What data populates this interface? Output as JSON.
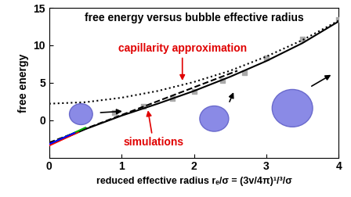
{
  "chart_data": {
    "type": "line",
    "title": "free energy versus bubble effective radius",
    "x_label": "reduced effective radius rₑ/σ = (3v/4π)¹/³/σ",
    "y_label": "free energy",
    "xlim": [
      0,
      4
    ],
    "xticks": [
      0,
      1,
      2,
      3,
      4
    ],
    "ylim": [
      -5,
      15
    ],
    "yticks": [
      0,
      5,
      10,
      15
    ],
    "grid": false,
    "annotations": [
      {
        "text": "capillarity approximation",
        "color": "#e00000"
      },
      {
        "text": "simulations",
        "color": "#e00000"
      }
    ],
    "series": [
      {
        "color": "#000000",
        "line_style": "dotted",
        "type": "line",
        "x": [
          0,
          0.5,
          1,
          1.5,
          2,
          2.5,
          3,
          3.5,
          4
        ],
        "values": [
          2.2,
          2.4,
          3.0,
          3.9,
          5.1,
          6.6,
          8.5,
          10.7,
          13.3
        ]
      },
      {
        "color": "#000000",
        "line_style": "solid",
        "type": "line",
        "x": [
          0,
          0.5,
          1,
          1.5,
          2,
          2.5,
          3,
          3.5,
          4
        ],
        "values": [
          -3.3,
          -1.2,
          0.6,
          2.2,
          3.9,
          5.8,
          7.9,
          10.3,
          13.2
        ]
      },
      {
        "color": "#000000",
        "line_style": "dashed",
        "type": "line",
        "x": [
          0,
          2.6
        ],
        "values": [
          -3.0,
          6.6
        ]
      },
      {
        "color": "#aaaaaa",
        "marker": "square",
        "type": "scatter",
        "x": [
          0.9,
          1.3,
          1.7,
          2.0,
          2.4,
          2.7,
          3.0,
          3.5,
          4.0
        ],
        "values": [
          1.0,
          1.8,
          2.9,
          3.8,
          5.3,
          6.3,
          8.3,
          10.8,
          13.4
        ]
      },
      {
        "color": "#ff0000",
        "line_style": "solid",
        "type": "line",
        "x": [
          0,
          0.4
        ],
        "values": [
          -3.4,
          -1.6
        ]
      },
      {
        "color": "#00aa00",
        "line_style": "solid",
        "type": "line",
        "x": [
          0.05,
          0.5
        ],
        "values": [
          -3.0,
          -1.0
        ]
      },
      {
        "color": "#0000ff",
        "line_style": "solid",
        "type": "line",
        "x": [
          0,
          0.35
        ],
        "values": [
          -3.2,
          -1.7
        ]
      }
    ]
  }
}
